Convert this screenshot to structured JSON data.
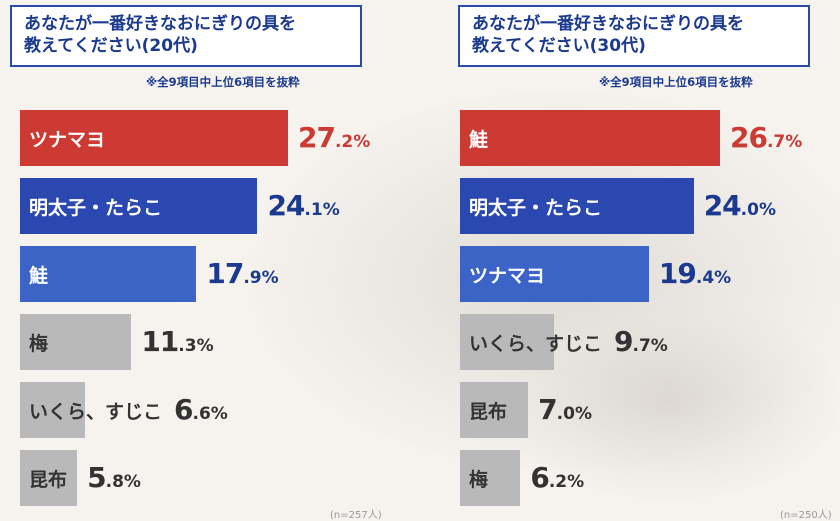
{
  "colors": {
    "red": "#cc3a33",
    "blue_dark": "#2a48b0",
    "blue_mid": "#3c64c6",
    "gray": "#b9b9b9",
    "navy_text": "#1b3a8f",
    "dark_text": "#333333"
  },
  "chart_data": [
    {
      "type": "bar",
      "orientation": "horizontal",
      "title": "あなたが一番好きなおにぎりの具を教えてください(20代)",
      "title_lines": [
        "あなたが一番好きなおにぎりの具を",
        "教えてください(20代)"
      ],
      "note": "※全9項目中上位6項目を抜粋",
      "categories": [
        "ツナマヨ",
        "明太子・たらこ",
        "鮭",
        "梅",
        "いくら、すじこ",
        "昆布"
      ],
      "values": [
        27.2,
        24.1,
        17.9,
        11.3,
        6.6,
        5.8
      ],
      "labels": [
        {
          "int": "27",
          "dec": ".2",
          "pct": "%"
        },
        {
          "int": "24",
          "dec": ".1",
          "pct": "%"
        },
        {
          "int": "17",
          "dec": ".9",
          "pct": "%"
        },
        {
          "int": "11",
          "dec": ".3",
          "pct": "%"
        },
        {
          "int": "6",
          "dec": ".6",
          "pct": "%"
        },
        {
          "int": "5",
          "dec": ".8",
          "pct": "%"
        }
      ],
      "bar_colors": [
        "red",
        "blue_dark",
        "blue_mid",
        "gray",
        "gray",
        "gray"
      ],
      "value_colors": [
        "red",
        "navy_text",
        "navy_text",
        "dark_text",
        "dark_text",
        "dark_text"
      ],
      "unit": "%",
      "xlim": [
        0,
        27.2
      ],
      "sample_note": "(n=257人)"
    },
    {
      "type": "bar",
      "orientation": "horizontal",
      "title": "あなたが一番好きなおにぎりの具を教えてください(30代)",
      "title_lines": [
        "あなたが一番好きなおにぎりの具を",
        "教えてください(30代)"
      ],
      "note": "※全9項目中上位6項目を抜粋",
      "categories": [
        "鮭",
        "明太子・たらこ",
        "ツナマヨ",
        "いくら、すじこ",
        "昆布",
        "梅"
      ],
      "values": [
        26.7,
        24.0,
        19.4,
        9.7,
        7.0,
        6.2
      ],
      "labels": [
        {
          "int": "26",
          "dec": ".7",
          "pct": "%"
        },
        {
          "int": "24",
          "dec": ".0",
          "pct": "%"
        },
        {
          "int": "19",
          "dec": ".4",
          "pct": "%"
        },
        {
          "int": "9",
          "dec": ".7",
          "pct": "%"
        },
        {
          "int": "7",
          "dec": ".0",
          "pct": "%"
        },
        {
          "int": "6",
          "dec": ".2",
          "pct": "%"
        }
      ],
      "bar_colors": [
        "red",
        "blue_dark",
        "blue_mid",
        "gray",
        "gray",
        "gray"
      ],
      "value_colors": [
        "red",
        "navy_text",
        "navy_text",
        "dark_text",
        "dark_text",
        "dark_text"
      ],
      "unit": "%",
      "xlim": [
        0,
        26.7
      ],
      "sample_note": "(n=250人)"
    }
  ]
}
